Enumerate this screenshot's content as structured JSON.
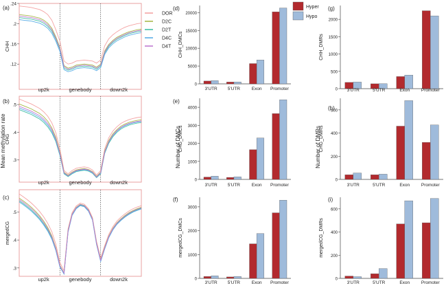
{
  "colors": {
    "frame": "#e8a0a0",
    "hyper": "#b22a2e",
    "hypo": "#9fbbdb",
    "DOR": "#f4a3a3",
    "D2C": "#a8b84a",
    "D2T": "#43bfa6",
    "D4C": "#5aaee6",
    "D4T": "#c07ad0"
  },
  "shared_labels": {
    "mean_methylation": "Mean methylation rate",
    "number_dmcs": "Number of DMCs",
    "number_dmrs": "Number of DMRs"
  },
  "chart_data": [
    {
      "id": "a",
      "type": "line",
      "panel_label": "(a)",
      "ylabel": "CHH",
      "ylim": [
        0.07,
        0.24
      ],
      "yticks": [
        0.12,
        0.16,
        0.2,
        0.24
      ],
      "regions": [
        "up2k",
        "genebody",
        "down2k"
      ],
      "x": [
        0,
        5,
        10,
        15,
        20,
        25,
        30,
        35,
        40,
        45,
        50,
        55,
        60,
        65,
        70,
        75,
        80,
        85,
        90,
        95,
        100,
        105,
        110,
        115,
        120,
        125,
        130,
        135,
        140,
        145,
        150
      ],
      "series": [
        {
          "name": "DOR",
          "values": [
            0.235,
            0.234,
            0.233,
            0.232,
            0.23,
            0.228,
            0.224,
            0.218,
            0.207,
            0.188,
            0.165,
            0.126,
            0.12,
            0.122,
            0.126,
            0.127,
            0.128,
            0.127,
            0.126,
            0.122,
            0.128,
            0.156,
            0.17,
            0.178,
            0.184,
            0.189,
            0.193,
            0.196,
            0.198,
            0.2,
            0.201
          ]
        },
        {
          "name": "D2C",
          "values": [
            0.218,
            0.217,
            0.216,
            0.215,
            0.213,
            0.211,
            0.207,
            0.201,
            0.191,
            0.174,
            0.153,
            0.117,
            0.112,
            0.114,
            0.118,
            0.119,
            0.12,
            0.119,
            0.118,
            0.114,
            0.12,
            0.146,
            0.159,
            0.167,
            0.173,
            0.177,
            0.181,
            0.184,
            0.186,
            0.188,
            0.189
          ]
        },
        {
          "name": "D2T",
          "values": [
            0.212,
            0.211,
            0.21,
            0.209,
            0.207,
            0.205,
            0.201,
            0.195,
            0.185,
            0.169,
            0.149,
            0.112,
            0.108,
            0.11,
            0.114,
            0.115,
            0.116,
            0.115,
            0.114,
            0.11,
            0.116,
            0.142,
            0.155,
            0.163,
            0.169,
            0.173,
            0.177,
            0.18,
            0.182,
            0.184,
            0.185
          ]
        },
        {
          "name": "D4C",
          "values": [
            0.208,
            0.207,
            0.206,
            0.205,
            0.203,
            0.201,
            0.197,
            0.191,
            0.181,
            0.165,
            0.145,
            0.109,
            0.105,
            0.107,
            0.111,
            0.112,
            0.113,
            0.112,
            0.111,
            0.107,
            0.113,
            0.139,
            0.152,
            0.16,
            0.166,
            0.17,
            0.174,
            0.177,
            0.179,
            0.181,
            0.182
          ]
        },
        {
          "name": "D4T",
          "values": [
            0.215,
            0.214,
            0.213,
            0.212,
            0.21,
            0.208,
            0.204,
            0.198,
            0.188,
            0.171,
            0.151,
            0.115,
            0.11,
            0.112,
            0.116,
            0.117,
            0.118,
            0.117,
            0.116,
            0.112,
            0.118,
            0.144,
            0.157,
            0.165,
            0.171,
            0.175,
            0.179,
            0.182,
            0.184,
            0.186,
            0.187
          ]
        }
      ]
    },
    {
      "id": "b",
      "type": "line",
      "panel_label": "(b)",
      "ylabel": "CHG",
      "ylim": [
        0.22,
        0.53
      ],
      "yticks": [
        0.3,
        0.4,
        0.5
      ],
      "regions": [
        "up2k",
        "genebody",
        "down2k"
      ],
      "x": [
        0,
        5,
        10,
        15,
        20,
        25,
        30,
        35,
        40,
        45,
        50,
        55,
        60,
        65,
        70,
        75,
        80,
        85,
        90,
        95,
        100,
        105,
        110,
        115,
        120,
        125,
        130,
        135,
        140,
        145,
        150
      ],
      "series": [
        {
          "name": "DOR",
          "values": [
            0.52,
            0.514,
            0.508,
            0.502,
            0.494,
            0.486,
            0.474,
            0.458,
            0.434,
            0.398,
            0.34,
            0.262,
            0.25,
            0.262,
            0.27,
            0.273,
            0.275,
            0.272,
            0.264,
            0.246,
            0.262,
            0.34,
            0.38,
            0.404,
            0.42,
            0.432,
            0.44,
            0.446,
            0.45,
            0.453,
            0.455
          ]
        },
        {
          "name": "D2C",
          "values": [
            0.502,
            0.496,
            0.49,
            0.484,
            0.476,
            0.468,
            0.456,
            0.44,
            0.416,
            0.382,
            0.328,
            0.256,
            0.245,
            0.256,
            0.264,
            0.267,
            0.269,
            0.266,
            0.258,
            0.241,
            0.256,
            0.332,
            0.37,
            0.394,
            0.41,
            0.422,
            0.43,
            0.436,
            0.44,
            0.443,
            0.445
          ]
        },
        {
          "name": "D2T",
          "values": [
            0.482,
            0.476,
            0.47,
            0.464,
            0.456,
            0.448,
            0.436,
            0.42,
            0.398,
            0.366,
            0.316,
            0.25,
            0.24,
            0.25,
            0.258,
            0.261,
            0.263,
            0.26,
            0.252,
            0.236,
            0.25,
            0.324,
            0.36,
            0.384,
            0.4,
            0.412,
            0.42,
            0.426,
            0.43,
            0.433,
            0.435
          ]
        },
        {
          "name": "D4C",
          "values": [
            0.488,
            0.482,
            0.476,
            0.47,
            0.462,
            0.454,
            0.442,
            0.426,
            0.404,
            0.371,
            0.32,
            0.252,
            0.242,
            0.252,
            0.26,
            0.263,
            0.265,
            0.262,
            0.254,
            0.238,
            0.252,
            0.327,
            0.364,
            0.388,
            0.404,
            0.416,
            0.424,
            0.43,
            0.434,
            0.437,
            0.439
          ]
        },
        {
          "name": "D4T",
          "values": [
            0.494,
            0.488,
            0.482,
            0.476,
            0.468,
            0.46,
            0.448,
            0.432,
            0.41,
            0.376,
            0.324,
            0.254,
            0.243,
            0.254,
            0.262,
            0.265,
            0.267,
            0.264,
            0.256,
            0.239,
            0.254,
            0.329,
            0.366,
            0.39,
            0.406,
            0.418,
            0.426,
            0.432,
            0.436,
            0.439,
            0.441
          ]
        }
      ]
    },
    {
      "id": "c",
      "type": "line",
      "panel_label": "(c)",
      "ylabel": "mergedCG",
      "ylim": [
        0.27,
        0.58
      ],
      "yticks": [
        0.3,
        0.4,
        0.5
      ],
      "regions": [
        "up2k",
        "genebody",
        "down2k"
      ],
      "x": [
        0,
        5,
        10,
        15,
        20,
        25,
        30,
        35,
        40,
        45,
        50,
        55,
        60,
        65,
        70,
        75,
        80,
        85,
        90,
        95,
        100,
        105,
        110,
        115,
        120,
        125,
        130,
        135,
        140,
        145,
        150
      ],
      "series": [
        {
          "name": "DOR",
          "values": [
            0.565,
            0.555,
            0.544,
            0.532,
            0.518,
            0.502,
            0.483,
            0.46,
            0.43,
            0.385,
            0.32,
            0.29,
            0.44,
            0.498,
            0.522,
            0.532,
            0.528,
            0.512,
            0.48,
            0.395,
            0.335,
            0.38,
            0.42,
            0.448,
            0.468,
            0.482,
            0.494,
            0.504,
            0.512,
            0.518,
            0.523
          ]
        },
        {
          "name": "D2C",
          "values": [
            0.55,
            0.54,
            0.529,
            0.517,
            0.503,
            0.487,
            0.468,
            0.445,
            0.415,
            0.372,
            0.31,
            0.282,
            0.434,
            0.493,
            0.517,
            0.528,
            0.524,
            0.508,
            0.476,
            0.39,
            0.328,
            0.374,
            0.414,
            0.442,
            0.462,
            0.476,
            0.488,
            0.498,
            0.506,
            0.512,
            0.517
          ]
        },
        {
          "name": "D2T",
          "values": [
            0.54,
            0.53,
            0.519,
            0.507,
            0.493,
            0.477,
            0.458,
            0.436,
            0.407,
            0.366,
            0.306,
            0.28,
            0.43,
            0.49,
            0.514,
            0.525,
            0.521,
            0.505,
            0.473,
            0.386,
            0.325,
            0.37,
            0.41,
            0.438,
            0.458,
            0.472,
            0.484,
            0.494,
            0.502,
            0.508,
            0.513
          ]
        },
        {
          "name": "D4C",
          "values": [
            0.536,
            0.526,
            0.515,
            0.503,
            0.489,
            0.473,
            0.454,
            0.432,
            0.403,
            0.362,
            0.303,
            0.278,
            0.428,
            0.488,
            0.512,
            0.523,
            0.519,
            0.503,
            0.471,
            0.384,
            0.323,
            0.368,
            0.408,
            0.436,
            0.456,
            0.47,
            0.482,
            0.492,
            0.5,
            0.506,
            0.511
          ]
        },
        {
          "name": "D4T",
          "values": [
            0.545,
            0.535,
            0.524,
            0.512,
            0.498,
            0.482,
            0.463,
            0.44,
            0.411,
            0.369,
            0.308,
            0.281,
            0.432,
            0.492,
            0.516,
            0.527,
            0.523,
            0.507,
            0.475,
            0.388,
            0.327,
            0.372,
            0.412,
            0.44,
            0.46,
            0.474,
            0.486,
            0.496,
            0.504,
            0.51,
            0.515
          ]
        }
      ]
    },
    {
      "id": "d",
      "type": "bar",
      "panel_label": "(d)",
      "ylabel": "CHH_DMCs",
      "categories": [
        "3'UTR",
        "5'UTR",
        "Exon",
        "Promoter"
      ],
      "ylim": [
        0,
        22000
      ],
      "yticks": [
        0,
        5000,
        10000,
        15000,
        20000
      ],
      "series": [
        {
          "name": "Hyper",
          "values": [
            800,
            500,
            5700,
            20200
          ]
        },
        {
          "name": "Hypo",
          "values": [
            900,
            550,
            6700,
            21300
          ]
        }
      ]
    },
    {
      "id": "e",
      "type": "bar",
      "panel_label": "(e)",
      "ylabel": "CHG_DMCs",
      "categories": [
        "3'UTR",
        "5'UTR",
        "Exon",
        "Promoter"
      ],
      "ylim": [
        0,
        4500
      ],
      "yticks": [
        0,
        1000,
        2000,
        3000,
        4000
      ],
      "series": [
        {
          "name": "Hyper",
          "values": [
            130,
            110,
            1650,
            3650
          ]
        },
        {
          "name": "Hypo",
          "values": [
            180,
            140,
            2300,
            4420
          ]
        }
      ]
    },
    {
      "id": "f",
      "type": "bar",
      "panel_label": "(f)",
      "ylabel": "mergedCG_DMCs",
      "categories": [
        "3'UTR",
        "5'UTR",
        "Exon",
        "Promoter"
      ],
      "ylim": [
        0,
        3400
      ],
      "yticks": [
        0,
        1000,
        2000,
        3000
      ],
      "series": [
        {
          "name": "Hyper",
          "values": [
            80,
            60,
            1450,
            2750
          ]
        },
        {
          "name": "Hypo",
          "values": [
            110,
            80,
            1880,
            3280
          ]
        }
      ]
    },
    {
      "id": "g",
      "type": "bar",
      "panel_label": "(g)",
      "ylabel": "CHH_DMRs",
      "categories": [
        "3'UTR",
        "5'UTR",
        "Exon",
        "Promoter"
      ],
      "ylim": [
        0,
        2400
      ],
      "yticks": [
        0,
        500,
        1000,
        1500,
        2000
      ],
      "series": [
        {
          "name": "Hyper",
          "values": [
            180,
            140,
            350,
            2250
          ]
        },
        {
          "name": "Hypo",
          "values": [
            190,
            145,
            390,
            2100
          ]
        }
      ]
    },
    {
      "id": "h",
      "type": "bar",
      "panel_label": "(h)",
      "ylabel": "CHG_DMRs",
      "categories": [
        "3'UTR",
        "5'UTR",
        "Exon",
        "Promoter"
      ],
      "ylim": [
        0,
        700
      ],
      "yticks": [
        0,
        200,
        400,
        600
      ],
      "series": [
        {
          "name": "Hyper",
          "values": [
            40,
            40,
            460,
            320
          ]
        },
        {
          "name": "Hypo",
          "values": [
            55,
            45,
            680,
            470
          ]
        }
      ]
    },
    {
      "id": "i",
      "type": "bar",
      "panel_label": "(i)",
      "ylabel": "mergedCG_DMRs",
      "categories": [
        "3'UTR",
        "5'UTR",
        "Exon",
        "Promoter"
      ],
      "ylim": [
        0,
        700
      ],
      "yticks": [
        0,
        200,
        400,
        600
      ],
      "series": [
        {
          "name": "Hyper",
          "values": [
            20,
            40,
            470,
            480
          ]
        },
        {
          "name": "Hypo",
          "values": [
            15,
            85,
            670,
            690
          ]
        }
      ]
    }
  ]
}
